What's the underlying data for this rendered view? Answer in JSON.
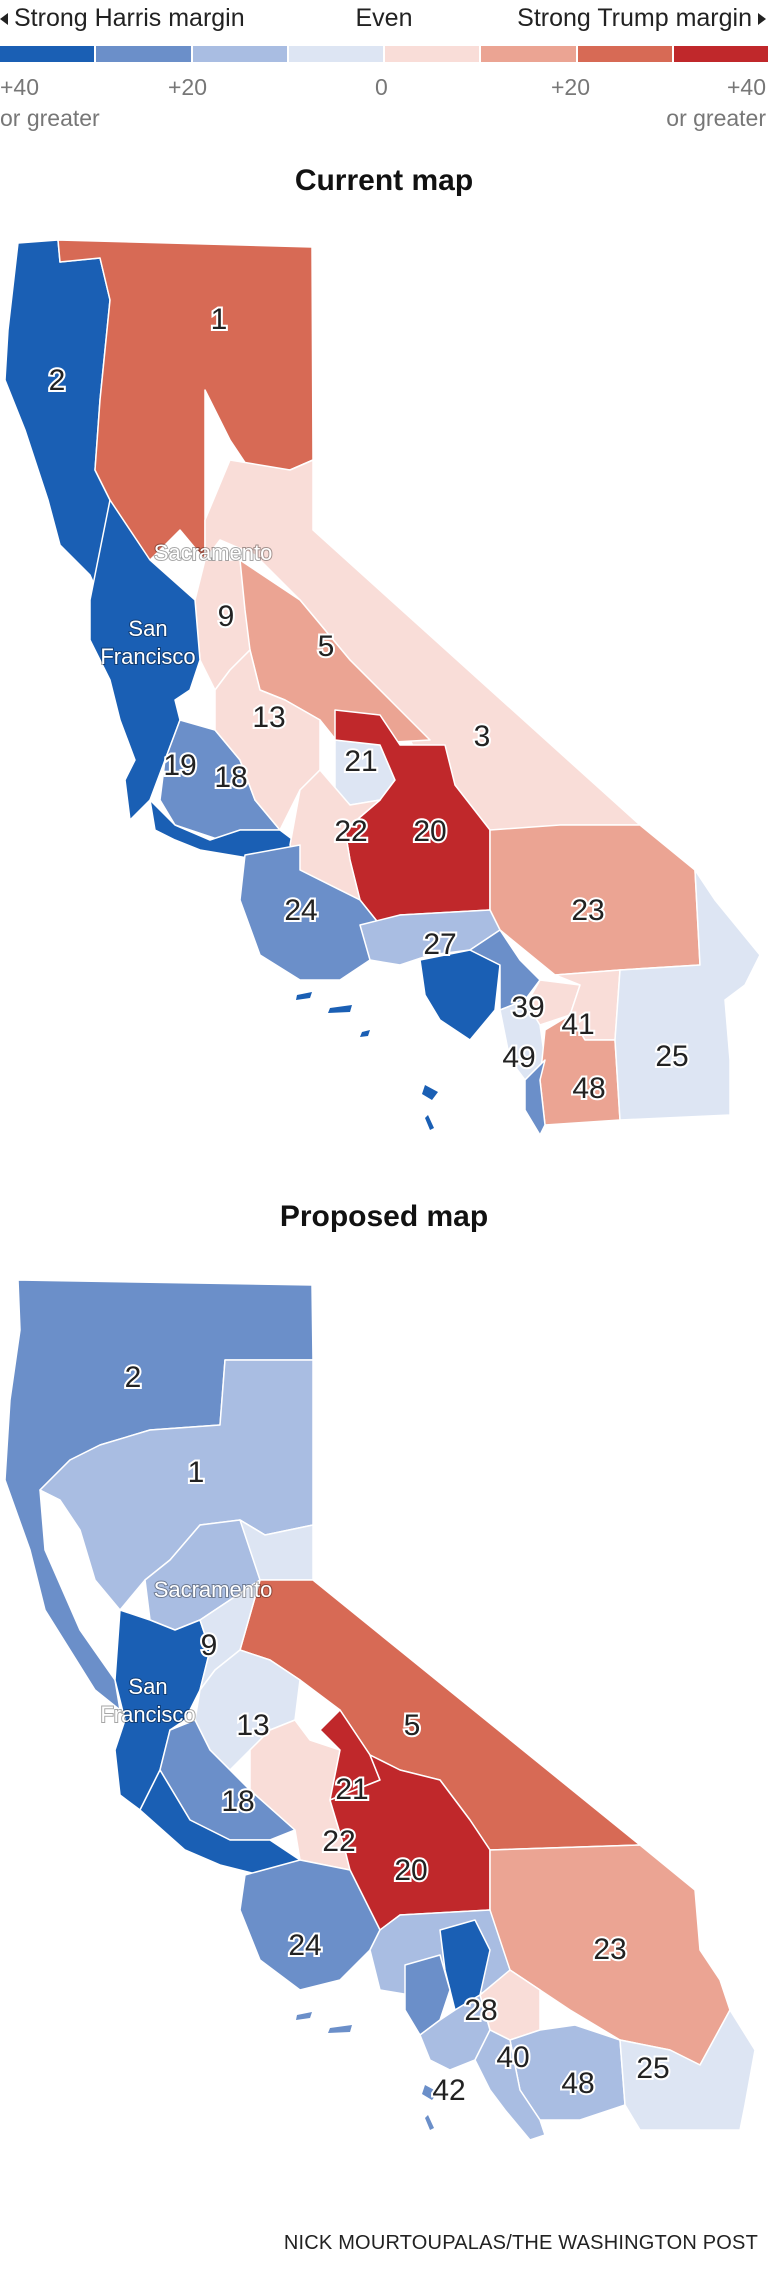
{
  "legend": {
    "left_label": "Strong Harris margin",
    "center_label": "Even",
    "right_label": "Strong Trump margin",
    "colors": [
      "#1a5fb4",
      "#6b8fc9",
      "#a9bde2",
      "#dde5f3",
      "#f9ddd8",
      "#eba493",
      "#d76a55",
      "#c0282b"
    ],
    "ticks": [
      {
        "value": "+40",
        "sub": "or greater"
      },
      {
        "value": "+20",
        "sub": ""
      },
      {
        "value": "0",
        "sub": ""
      },
      {
        "value": "+20",
        "sub": ""
      },
      {
        "value": "+40",
        "sub": "or greater"
      }
    ]
  },
  "maps": [
    {
      "title": "Current map",
      "district_labels": [
        "1",
        "2",
        "3",
        "5",
        "9",
        "13",
        "18",
        "19",
        "20",
        "21",
        "22",
        "23",
        "24",
        "25",
        "27",
        "39",
        "41",
        "48",
        "49"
      ],
      "city_labels": [
        "Sacramento",
        "San",
        "Francisco"
      ]
    },
    {
      "title": "Proposed map",
      "district_labels": [
        "1",
        "2",
        "5",
        "9",
        "13",
        "18",
        "20",
        "21",
        "22",
        "23",
        "24",
        "25",
        "28",
        "40",
        "42",
        "48"
      ],
      "city_labels": [
        "Sacramento",
        "San",
        "Francisco"
      ]
    }
  ],
  "credit": "NICK MOURTOUPALAS/THE WASHINGTON POST"
}
